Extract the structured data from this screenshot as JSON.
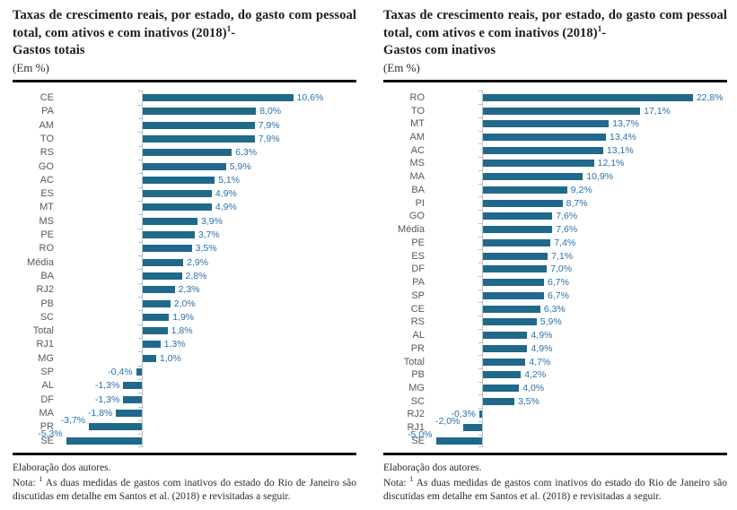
{
  "panels": [
    {
      "title_main": "Taxas de crescimento reais, por estado, do gasto com pessoal total, com ativos e com inativos (2018)",
      "title_sup": "1",
      "title_dash": "-",
      "title_variant": "Gastos totais",
      "unit": "(Em %)",
      "source": "Elaboração dos autores.",
      "note_label": "Nota:",
      "note_sup": "1",
      "note_body": "As duas medidas de gastos com inativos do estado do Rio de Janeiro são discutidas em detalhe em Santos et al. (2018) e revisitadas a seguir."
    },
    {
      "title_main": "Taxas de crescimento reais, por estado, do gasto com pessoal total, com ativos e com inativos (2018)",
      "title_sup": "1",
      "title_dash": "-",
      "title_variant": "Gastos com inativos",
      "unit": "(Em %)",
      "source": "Elaboração dos autores.",
      "note_label": "Nota:",
      "note_sup": "1",
      "note_body": "As duas medidas de gastos com inativos do estado do Rio de Janeiro são discutidas em detalhe em Santos et al. (2018) e revisitadas a seguir."
    }
  ],
  "chart_data": [
    {
      "type": "bar",
      "orientation": "horizontal",
      "title": "Taxas de crescimento reais, por estado, do gasto com pessoal total, com ativos e com inativos (2018) - Gastos totais",
      "unit": "Em %",
      "legend": "none",
      "grid": "off",
      "xlim": [
        -6,
        12
      ],
      "categories": [
        "CE",
        "PA",
        "AM",
        "TO",
        "RS",
        "GO",
        "AC",
        "ES",
        "MT",
        "MS",
        "PE",
        "RO",
        "Média",
        "BA",
        "RJ2",
        "PB",
        "SC",
        "Total",
        "RJ1",
        "MG",
        "SP",
        "AL",
        "DF",
        "MA",
        "PR",
        "SE"
      ],
      "values": [
        10.6,
        8.0,
        7.9,
        7.9,
        6.3,
        5.9,
        5.1,
        4.9,
        4.9,
        3.9,
        3.7,
        3.5,
        2.9,
        2.8,
        2.3,
        2.0,
        1.9,
        1.8,
        1.3,
        1.0,
        -0.4,
        -1.3,
        -1.3,
        -1.8,
        -3.7,
        -5.3
      ],
      "value_labels": [
        "10,6%",
        "8,0%",
        "7,9%",
        "7,9%",
        "6,3%",
        "5,9%",
        "5,1%",
        "4,9%",
        "4,9%",
        "3,9%",
        "3,7%",
        "3,5%",
        "2,9%",
        "2,8%",
        "2,3%",
        "2,0%",
        "1,9%",
        "1,8%",
        "1,3%",
        "1,0%",
        "-0,4%",
        "-1,3%",
        "-1,3%",
        "-1,8%",
        "-3,7%",
        "-5,3%"
      ],
      "bar_color": "#20698A",
      "label_color": "#2B70A9",
      "axis_color": "#BFBFBF"
    },
    {
      "type": "bar",
      "orientation": "horizontal",
      "title": "Taxas de crescimento reais, por estado, do gasto com pessoal total, com ativos e com inativos (2018) - Gastos com inativos",
      "unit": "Em %",
      "legend": "none",
      "grid": "off",
      "xlim": [
        -6,
        24
      ],
      "categories": [
        "RO",
        "TO",
        "MT",
        "AM",
        "AC",
        "MS",
        "MA",
        "BA",
        "PI",
        "GO",
        "Média",
        "PE",
        "ES",
        "DF",
        "PA",
        "SP",
        "CE",
        "RS",
        "AL",
        "PR",
        "Total",
        "PB",
        "MG",
        "SC",
        "RJ2",
        "RJ1",
        "SE"
      ],
      "values": [
        22.8,
        17.1,
        13.7,
        13.4,
        13.1,
        12.1,
        10.9,
        9.2,
        8.7,
        7.6,
        7.6,
        7.4,
        7.1,
        7.0,
        6.7,
        6.7,
        6.3,
        5.9,
        4.9,
        4.9,
        4.7,
        4.2,
        4.0,
        3.5,
        -0.3,
        -2.0,
        -5.0
      ],
      "value_labels": [
        "22,8%",
        "17,1%",
        "13,7%",
        "13,4%",
        "13,1%",
        "12,1%",
        "10,9%",
        "9,2%",
        "8,7%",
        "7,6%",
        "7,6%",
        "7,4%",
        "7,1%",
        "7,0%",
        "6,7%",
        "6,7%",
        "6,3%",
        "5,9%",
        "4,9%",
        "4,9%",
        "4,7%",
        "4,2%",
        "4,0%",
        "3,5%",
        "-0,3%",
        "-2,0%",
        "-5,0%"
      ],
      "bar_color": "#20698A",
      "label_color": "#2B70A9",
      "axis_color": "#BFBFBF"
    }
  ]
}
